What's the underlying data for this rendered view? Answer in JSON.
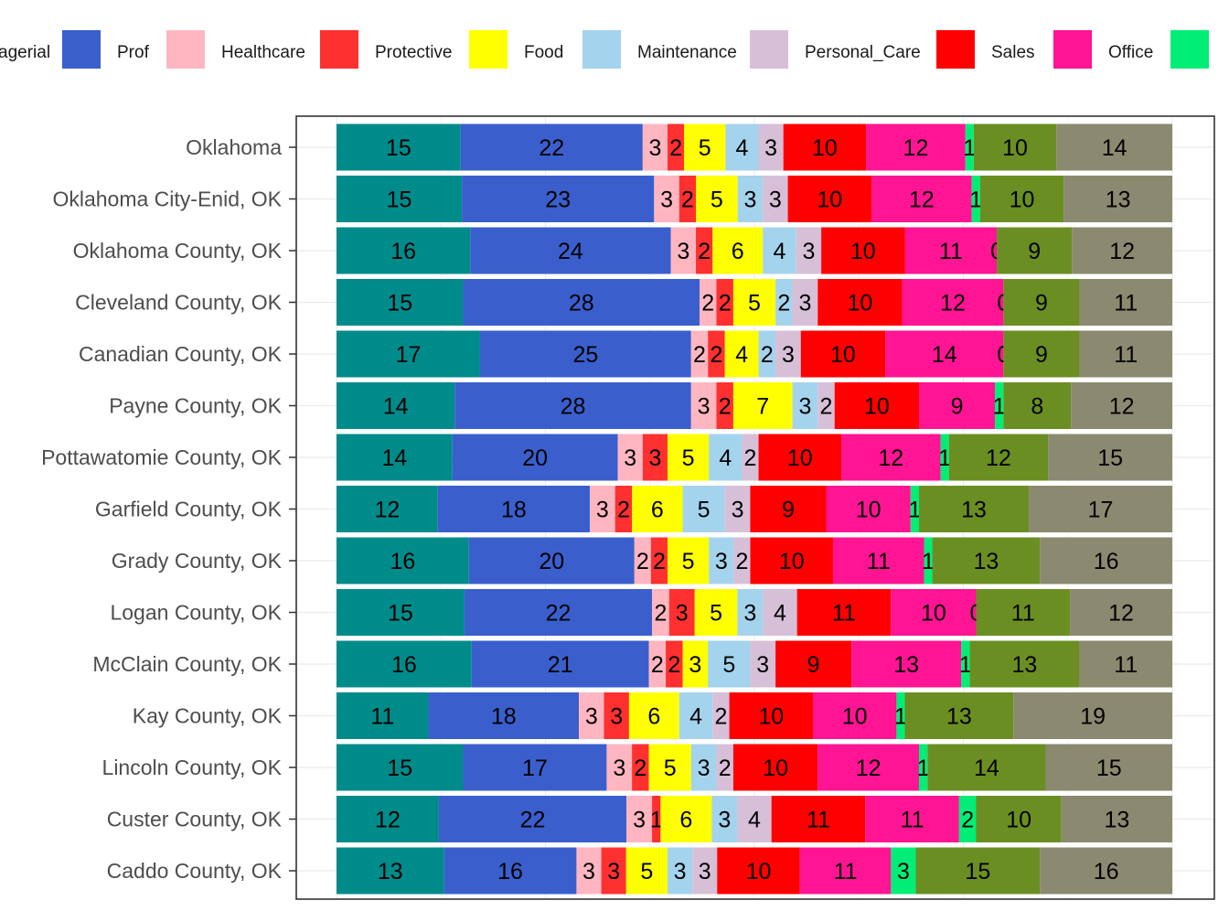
{
  "chart_data": {
    "type": "bar",
    "orientation": "horizontal",
    "stacked": true,
    "title": "",
    "xlabel": "",
    "ylabel": "",
    "grid": true,
    "legend_position": "top",
    "categories": [
      "Oklahoma",
      "Oklahoma City-Enid, OK",
      "Oklahoma County, OK",
      "Cleveland County, OK",
      "Canadian County, OK",
      "Payne County, OK",
      "Pottawatomie County, OK",
      "Garfield County, OK",
      "Grady County, OK",
      "Logan County, OK",
      "McClain County, OK",
      "Kay County, OK",
      "Lincoln County, OK",
      "Custer County, OK",
      "Caddo County, OK"
    ],
    "legend": [
      {
        "label": "agerial",
        "color": "#008B8B"
      },
      {
        "label": "Prof",
        "color": "#3A5FCD"
      },
      {
        "label": "Healthcare",
        "color": "#FFB6C1"
      },
      {
        "label": "Protective",
        "color": "#FF3030"
      },
      {
        "label": "Food",
        "color": "#FFFF00"
      },
      {
        "label": "Maintenance",
        "color": "#A4D3EE"
      },
      {
        "label": "Personal_Care",
        "color": "#D8BFD8"
      },
      {
        "label": "Sales",
        "color": "#FF0000"
      },
      {
        "label": "Office",
        "color": "#FF1493"
      },
      {
        "label": "",
        "color": "#00EE76"
      }
    ],
    "series": [
      {
        "color": "#008B8B",
        "values": [
          15,
          15,
          16,
          15,
          17,
          14,
          14,
          12,
          16,
          15,
          16,
          11,
          15,
          12,
          13
        ]
      },
      {
        "color": "#3A5FCD",
        "values": [
          22,
          23,
          24,
          28,
          25,
          28,
          20,
          18,
          20,
          22,
          21,
          18,
          17,
          22,
          16
        ]
      },
      {
        "color": "#FFB6C1",
        "values": [
          3,
          3,
          3,
          2,
          2,
          3,
          3,
          3,
          2,
          2,
          2,
          3,
          3,
          3,
          3
        ]
      },
      {
        "color": "#FF3030",
        "values": [
          2,
          2,
          2,
          2,
          2,
          2,
          3,
          2,
          2,
          3,
          2,
          3,
          2,
          1,
          3
        ]
      },
      {
        "color": "#FFFF00",
        "values": [
          5,
          5,
          6,
          5,
          4,
          7,
          5,
          6,
          5,
          5,
          3,
          6,
          5,
          6,
          5
        ]
      },
      {
        "color": "#A4D3EE",
        "values": [
          4,
          3,
          4,
          2,
          2,
          3,
          4,
          5,
          3,
          3,
          5,
          4,
          3,
          3,
          3
        ]
      },
      {
        "color": "#D8BFD8",
        "values": [
          3,
          3,
          3,
          3,
          3,
          2,
          2,
          3,
          2,
          4,
          3,
          2,
          2,
          4,
          3
        ]
      },
      {
        "color": "#FF0000",
        "values": [
          10,
          10,
          10,
          10,
          10,
          10,
          10,
          9,
          10,
          11,
          9,
          10,
          10,
          11,
          10
        ]
      },
      {
        "color": "#FF1493",
        "values": [
          12,
          12,
          11,
          12,
          14,
          9,
          12,
          10,
          11,
          10,
          13,
          10,
          12,
          11,
          11
        ]
      },
      {
        "color": "#00EE76",
        "values": [
          1,
          1,
          0,
          0,
          0,
          1,
          1,
          1,
          1,
          0,
          1,
          1,
          1,
          2,
          3
        ]
      },
      {
        "color": "#6B8E23",
        "values": [
          10,
          10,
          9,
          9,
          9,
          8,
          12,
          13,
          13,
          11,
          13,
          13,
          14,
          10,
          15
        ]
      },
      {
        "color": "#8B8970",
        "values": [
          14,
          13,
          12,
          11,
          11,
          12,
          15,
          17,
          16,
          12,
          11,
          19,
          15,
          13,
          16
        ]
      }
    ]
  }
}
